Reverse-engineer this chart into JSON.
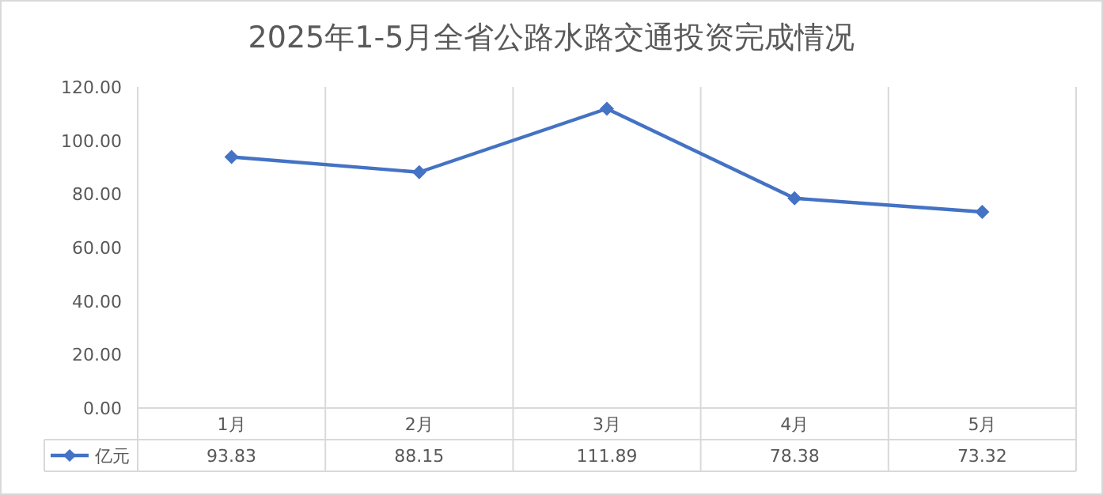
{
  "chart_data": {
    "type": "line",
    "title": "2025年1-5月全省公路水路交通投资完成情况",
    "categories": [
      "1月",
      "2月",
      "3月",
      "4月",
      "5月"
    ],
    "series": [
      {
        "name": "亿元",
        "color": "#4472c4",
        "values": [
          93.83,
          88.15,
          111.89,
          78.38,
          73.32
        ]
      }
    ],
    "ylim": [
      0,
      120
    ],
    "yticks": [
      {
        "value": 0,
        "label": "0.00"
      },
      {
        "value": 20,
        "label": "20.00"
      },
      {
        "value": 40,
        "label": "40.00"
      },
      {
        "value": 60,
        "label": "60.00"
      },
      {
        "value": 80,
        "label": "80.00"
      },
      {
        "value": 100,
        "label": "100.00"
      },
      {
        "value": 120,
        "label": "120.00"
      }
    ],
    "grid": "x",
    "marker": "diamond",
    "line_style": "solid",
    "data_labels": true,
    "legend": "bottom left"
  }
}
